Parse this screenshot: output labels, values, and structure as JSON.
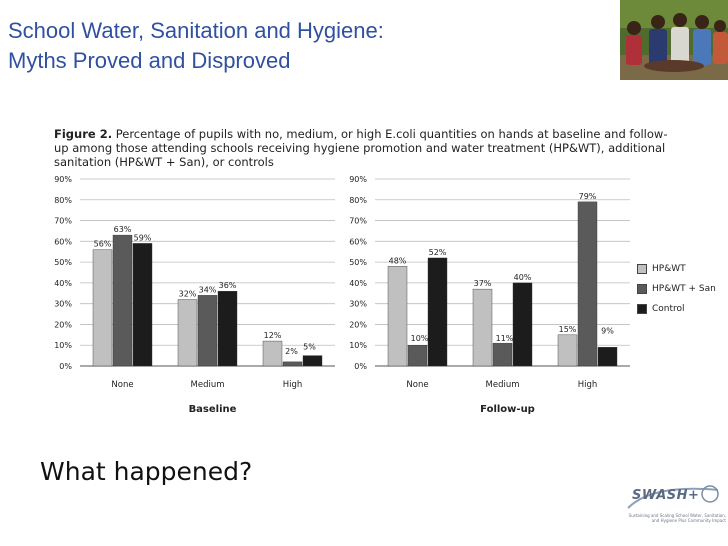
{
  "slide": {
    "title_line1": "School Water, Sanitation and Hygiene:",
    "title_line2": "Myths Proved and Disproved",
    "question": "What happened?"
  },
  "figure": {
    "label": "Figure 2.",
    "caption": " Percentage of pupils with no, medium, or high E.coli quantities on hands at baseline and follow-up among those attending schools receiving hygiene promotion and water treatment (HP&WT), additional sanitation (HP&WT + San), or controls"
  },
  "logo": {
    "word": "SWASH+",
    "tagline": "Sustaining and Scaling School Water, Sanitation, and Hygiene Plus Community Impact"
  },
  "colors": {
    "series": [
      "#c0c0c0",
      "#5a5a5a",
      "#1c1c1c"
    ],
    "grid": "#bdbdbd",
    "title": "#3050a0"
  },
  "chart_data": [
    {
      "type": "bar",
      "title": "Baseline",
      "xlabel": "Baseline",
      "ylabel": "",
      "categories": [
        "None",
        "Medium",
        "High"
      ],
      "series": [
        {
          "name": "HP&WT",
          "values": [
            56,
            32,
            12
          ]
        },
        {
          "name": "HP&WT + San",
          "values": [
            63,
            34,
            2
          ]
        },
        {
          "name": "Control",
          "values": [
            59,
            36,
            5
          ]
        }
      ],
      "ylim": [
        0,
        90
      ],
      "yticks": [
        0,
        10,
        20,
        30,
        40,
        50,
        60,
        70,
        80,
        90
      ],
      "ytick_labels": [
        "0%",
        "10%",
        "20%",
        "30%",
        "40%",
        "50%",
        "60%",
        "70%",
        "80%",
        "90%"
      ],
      "data_labels": [
        [
          "56%",
          "32%",
          "12%"
        ],
        [
          "63%",
          "34%",
          "2%"
        ],
        [
          "59%",
          "36%",
          "5%"
        ]
      ],
      "grid": true
    },
    {
      "type": "bar",
      "title": "Follow-up",
      "xlabel": "Follow-up",
      "ylabel": "",
      "categories": [
        "None",
        "Medium",
        "High"
      ],
      "series": [
        {
          "name": "HP&WT",
          "values": [
            48,
            37,
            15
          ]
        },
        {
          "name": "HP&WT + San",
          "values": [
            10,
            11,
            79
          ]
        },
        {
          "name": "Control",
          "values": [
            52,
            40,
            9
          ]
        }
      ],
      "ylim": [
        0,
        90
      ],
      "yticks": [
        0,
        10,
        20,
        30,
        40,
        50,
        60,
        70,
        80,
        90
      ],
      "ytick_labels": [
        "0%",
        "10%",
        "20%",
        "30%",
        "40%",
        "50%",
        "60%",
        "70%",
        "80%",
        "90%"
      ],
      "data_labels": [
        [
          "48%",
          "37%",
          "15%"
        ],
        [
          "10%",
          "11%",
          "79%"
        ],
        [
          "52%",
          "40%",
          "9%"
        ]
      ],
      "grid": true,
      "legend": {
        "position": "right",
        "entries": [
          "HP&WT",
          "HP&WT + San",
          "Control"
        ]
      }
    }
  ]
}
